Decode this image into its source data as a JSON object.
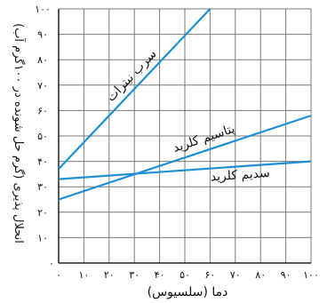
{
  "chart_data": {
    "type": "line",
    "title": "",
    "xlabel": "دما (سلسیوس)",
    "ylabel": "انحلال پذیری (گرم حل شونده در ۱۰۰گرم آب)",
    "xlim": [
      0,
      100
    ],
    "ylim": [
      0,
      100
    ],
    "grid": true,
    "x_ticks": [
      0,
      10,
      20,
      30,
      40,
      50,
      60,
      70,
      80,
      90,
      100
    ],
    "x_tick_labels": [
      "۰",
      "۱۰",
      "۲۰",
      "۳۰",
      "۴۰",
      "۵۰",
      "۶۰",
      "۷۰",
      "۸۰",
      "۹۰",
      "۱۰۰"
    ],
    "y_ticks": [
      10,
      20,
      30,
      40,
      50,
      60,
      70,
      80,
      90,
      100
    ],
    "y_tick_labels": [
      "۱۰",
      "۲۰",
      "۳۰",
      "۴۰",
      "۵۰",
      "۶۰",
      "۷۰",
      "۸۰",
      "۹۰",
      "۱۰۰"
    ],
    "y_origin_label": "۰",
    "line_color": "#1a8fd1",
    "grid_color": "#7a7a7a",
    "series": [
      {
        "name": "سرب نیترات",
        "x": [
          0,
          60
        ],
        "y": [
          37,
          100
        ]
      },
      {
        "name": "پتاسیم کلرید",
        "x": [
          0,
          100
        ],
        "y": [
          25,
          58
        ]
      },
      {
        "name": "سدیم کلرید",
        "x": [
          0,
          100
        ],
        "y": [
          33,
          40
        ]
      }
    ]
  }
}
